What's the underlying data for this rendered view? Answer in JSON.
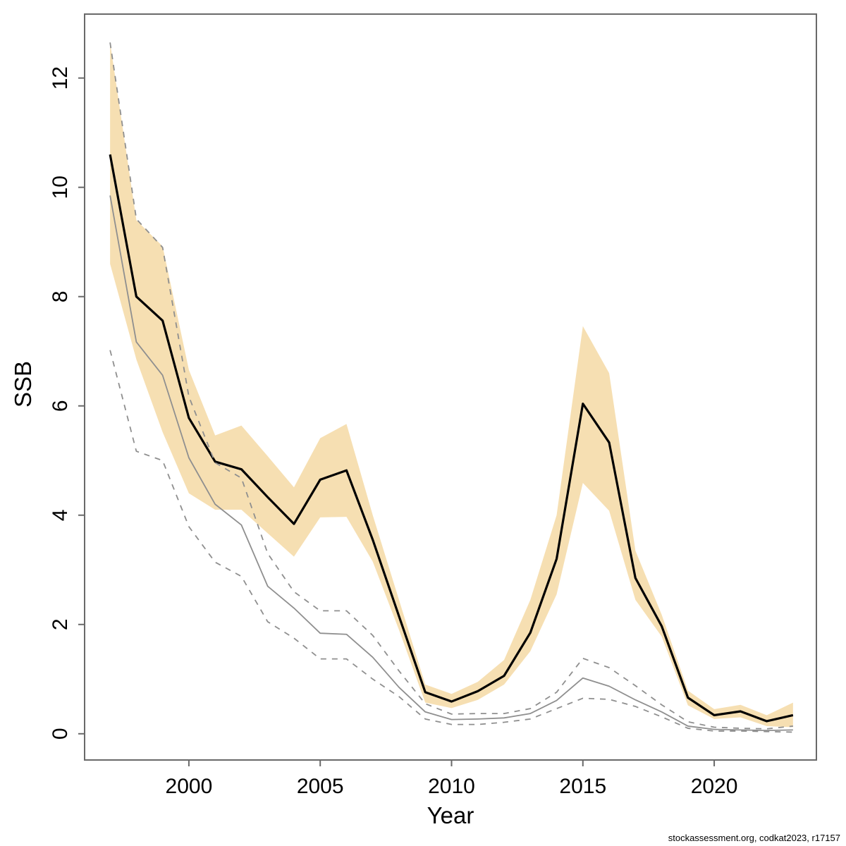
{
  "footer": {
    "attribution": "stockassessment.org, codkat2023, r17157"
  },
  "colors": {
    "band": "#f6dfb2",
    "estimate_line": "#000000",
    "comparison_line": "#8f8f8f",
    "comparison_ci_line": "#8f8f8f",
    "axis": "#696969",
    "background": "#ffffff"
  },
  "chart_data": {
    "type": "line",
    "title": "",
    "xlabel": "Year",
    "ylabel": "SSB",
    "xlim": [
      1996.03,
      2023.89
    ],
    "ylim": [
      -0.48,
      13.17
    ],
    "xticks": [
      2000,
      2005,
      2010,
      2015,
      2020
    ],
    "yticks": [
      0,
      2,
      4,
      6,
      8,
      10,
      12
    ],
    "grid": "off",
    "legend": "none",
    "x": [
      1997,
      1998,
      1999,
      2000,
      2001,
      2002,
      2003,
      2004,
      2005,
      2006,
      2007,
      2008,
      2009,
      2010,
      2011,
      2012,
      2013,
      2014,
      2015,
      2016,
      2017,
      2018,
      2019,
      2020,
      2021,
      2022,
      2023
    ],
    "band": {
      "name": "estimate-95ci-band",
      "hi": [
        12.65,
        9.4,
        8.92,
        6.66,
        5.46,
        5.64,
        5.08,
        4.51,
        5.41,
        5.67,
        4.0,
        2.45,
        0.9,
        0.73,
        0.95,
        1.35,
        2.45,
        4.0,
        7.46,
        6.6,
        3.35,
        2.18,
        0.79,
        0.45,
        0.53,
        0.34,
        0.57
      ],
      "lo": [
        8.6,
        6.85,
        5.52,
        4.4,
        4.1,
        4.1,
        3.67,
        3.24,
        3.96,
        3.97,
        3.15,
        1.9,
        0.57,
        0.47,
        0.62,
        0.9,
        1.51,
        2.55,
        4.59,
        4.08,
        2.45,
        1.78,
        0.52,
        0.27,
        0.3,
        0.14,
        0.12
      ]
    },
    "series": [
      {
        "name": "ssb-estimate",
        "style": "solid",
        "color": "#000000",
        "width": 3.2,
        "values": [
          10.6,
          8.0,
          7.56,
          5.78,
          4.98,
          4.84,
          4.33,
          3.84,
          4.65,
          4.82,
          3.55,
          2.15,
          0.76,
          0.59,
          0.78,
          1.06,
          1.85,
          3.2,
          6.04,
          5.33,
          2.85,
          1.97,
          0.66,
          0.34,
          0.41,
          0.23,
          0.34
        ]
      },
      {
        "name": "comparison-run",
        "style": "solid",
        "color": "#8f8f8f",
        "width": 1.8,
        "values": [
          9.85,
          7.17,
          6.56,
          5.05,
          4.2,
          3.82,
          2.7,
          2.3,
          1.84,
          1.82,
          1.4,
          0.85,
          0.4,
          0.26,
          0.27,
          0.29,
          0.37,
          0.61,
          1.02,
          0.87,
          0.62,
          0.4,
          0.14,
          0.08,
          0.07,
          0.06,
          0.07
        ]
      },
      {
        "name": "comparison-run-ci-upper",
        "style": "dashed",
        "color": "#8f8f8f",
        "width": 1.8,
        "values": [
          12.65,
          9.42,
          8.9,
          6.17,
          4.96,
          4.68,
          3.3,
          2.6,
          2.25,
          2.25,
          1.8,
          1.15,
          0.55,
          0.36,
          0.37,
          0.37,
          0.46,
          0.76,
          1.38,
          1.21,
          0.88,
          0.53,
          0.22,
          0.12,
          0.1,
          0.09,
          0.14
        ],
        "values_lo_note": ""
      },
      {
        "name": "comparison-run-ci-lower",
        "style": "dashed",
        "color": "#8f8f8f",
        "width": 1.8,
        "values": [
          7.02,
          5.17,
          5.0,
          3.79,
          3.14,
          2.88,
          2.05,
          1.75,
          1.37,
          1.37,
          1.0,
          0.68,
          0.27,
          0.17,
          0.17,
          0.21,
          0.27,
          0.46,
          0.65,
          0.63,
          0.5,
          0.31,
          0.1,
          0.05,
          0.05,
          0.04,
          0.03
        ]
      }
    ]
  }
}
